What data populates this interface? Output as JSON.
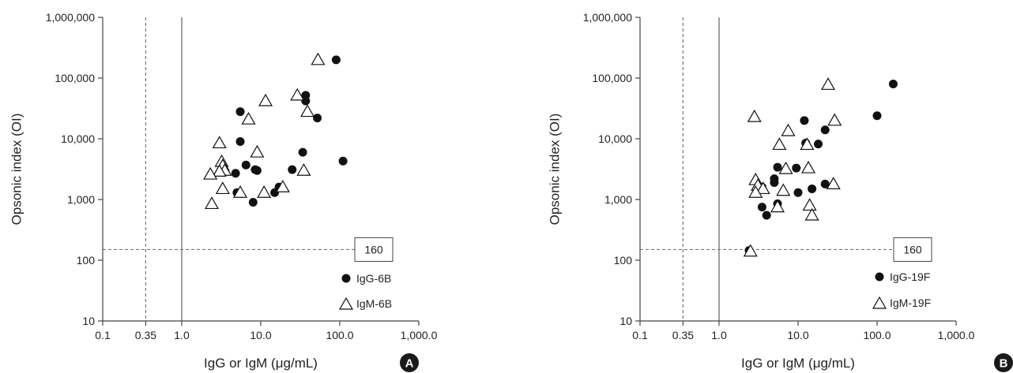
{
  "colors": {
    "axis": "#444444",
    "text": "#222222",
    "dashed": "#777777",
    "solid_ref": "#777777",
    "panel_badge": "#1a1a1a"
  },
  "chart_data": [
    {
      "type": "scatter",
      "panel_label": "A",
      "title": "",
      "xlabel": "IgG or IgM (μg/mL)",
      "ylabel": "Opsonic index (OI)",
      "x_scale": "log",
      "y_scale": "log",
      "xlim": [
        0.1,
        1000
      ],
      "ylim": [
        10,
        1000000
      ],
      "x_ticks": [
        {
          "value": 0.1,
          "label": "0.1"
        },
        {
          "value": 0.35,
          "label": "0.35"
        },
        {
          "value": 1,
          "label": "1.0"
        },
        {
          "value": 10,
          "label": "10.0"
        },
        {
          "value": 100,
          "label": "100.0"
        },
        {
          "value": 1000,
          "label": "1,000.0"
        }
      ],
      "y_ticks": [
        {
          "value": 10,
          "label": "10"
        },
        {
          "value": 100,
          "label": "100"
        },
        {
          "value": 1000,
          "label": "1,000"
        },
        {
          "value": 10000,
          "label": "10,000"
        },
        {
          "value": 100000,
          "label": "100,000"
        },
        {
          "value": 1000000,
          "label": "1,000,000"
        }
      ],
      "ref_lines": {
        "x_dashed": 0.35,
        "x_solid": 1,
        "y_dashed": 150
      },
      "annotation": {
        "text": "160",
        "y": 150
      },
      "legend_position": "bottom-right",
      "series": [
        {
          "name": "IgG-6B",
          "marker": "filled-circle",
          "points": [
            [
              90,
              200000
            ],
            [
              37,
              52000
            ],
            [
              37,
              42000
            ],
            [
              52,
              22000
            ],
            [
              5.5,
              28000
            ],
            [
              5.5,
              9000
            ],
            [
              34,
              6000
            ],
            [
              110,
              4300
            ],
            [
              6.5,
              3700
            ],
            [
              8.5,
              3100
            ],
            [
              9,
              3000
            ],
            [
              4.8,
              2700
            ],
            [
              25,
              3100
            ],
            [
              5,
              1300
            ],
            [
              15,
              1300
            ],
            [
              17,
              1600
            ],
            [
              8,
              900
            ]
          ]
        },
        {
          "name": "IgM-6B",
          "marker": "open-triangle",
          "points": [
            [
              53,
              200000
            ],
            [
              11.5,
              42000
            ],
            [
              29,
              52000
            ],
            [
              39,
              28000
            ],
            [
              7,
              21000
            ],
            [
              3,
              8500
            ],
            [
              9,
              6000
            ],
            [
              3.2,
              4200
            ],
            [
              3.3,
              3600
            ],
            [
              3.5,
              3000
            ],
            [
              3,
              2900
            ],
            [
              2.3,
              2600
            ],
            [
              35,
              3000
            ],
            [
              5.5,
              1300
            ],
            [
              3.3,
              1500
            ],
            [
              11,
              1300
            ],
            [
              19,
              1600
            ],
            [
              2.4,
              850
            ]
          ]
        }
      ]
    },
    {
      "type": "scatter",
      "panel_label": "B",
      "title": "",
      "xlabel": "IgG or IgM (μg/mL)",
      "ylabel": "Opsonic index (OI)",
      "x_scale": "log",
      "y_scale": "log",
      "xlim": [
        0.1,
        1000
      ],
      "ylim": [
        10,
        1000000
      ],
      "x_ticks": [
        {
          "value": 0.1,
          "label": "0.1"
        },
        {
          "value": 0.35,
          "label": "0.35"
        },
        {
          "value": 1,
          "label": "1.0"
        },
        {
          "value": 10,
          "label": "10.0"
        },
        {
          "value": 100,
          "label": "100.0"
        },
        {
          "value": 1000,
          "label": "1,000.0"
        }
      ],
      "y_ticks": [
        {
          "value": 10,
          "label": "10"
        },
        {
          "value": 100,
          "label": "100"
        },
        {
          "value": 1000,
          "label": "1,000"
        },
        {
          "value": 10000,
          "label": "10,000"
        },
        {
          "value": 100000,
          "label": "100,000"
        },
        {
          "value": 1000000,
          "label": "1,000,000"
        }
      ],
      "ref_lines": {
        "x_dashed": 0.35,
        "x_solid": 1,
        "y_dashed": 150
      },
      "annotation": {
        "text": "160",
        "y": 150
      },
      "legend_position": "bottom-right",
      "series": [
        {
          "name": "IgG-19F",
          "marker": "filled-circle",
          "points": [
            [
              160,
              80000
            ],
            [
              100,
              24000
            ],
            [
              12,
              20000
            ],
            [
              22,
              14000
            ],
            [
              12.5,
              8500
            ],
            [
              18,
              8200
            ],
            [
              5.5,
              3400
            ],
            [
              9.5,
              3300
            ],
            [
              5,
              2200
            ],
            [
              5,
              1900
            ],
            [
              3.5,
              1600
            ],
            [
              10,
              1300
            ],
            [
              15,
              1500
            ],
            [
              22,
              1800
            ],
            [
              3.5,
              750
            ],
            [
              5.5,
              850
            ],
            [
              4,
              550
            ],
            [
              2.4,
              145
            ]
          ]
        },
        {
          "name": "IgM-19F",
          "marker": "open-triangle",
          "points": [
            [
              24,
              78000
            ],
            [
              2.8,
              23000
            ],
            [
              7.5,
              13500
            ],
            [
              29,
              20000
            ],
            [
              5.8,
              8000
            ],
            [
              13,
              8000
            ],
            [
              7,
              3200
            ],
            [
              13.5,
              3300
            ],
            [
              2.9,
              2100
            ],
            [
              3.1,
              1700
            ],
            [
              3.6,
              1500
            ],
            [
              2.9,
              1300
            ],
            [
              6.5,
              1400
            ],
            [
              28,
              1800
            ],
            [
              5.5,
              750
            ],
            [
              14,
              800
            ],
            [
              15,
              550
            ],
            [
              2.5,
              140
            ]
          ]
        }
      ]
    }
  ]
}
